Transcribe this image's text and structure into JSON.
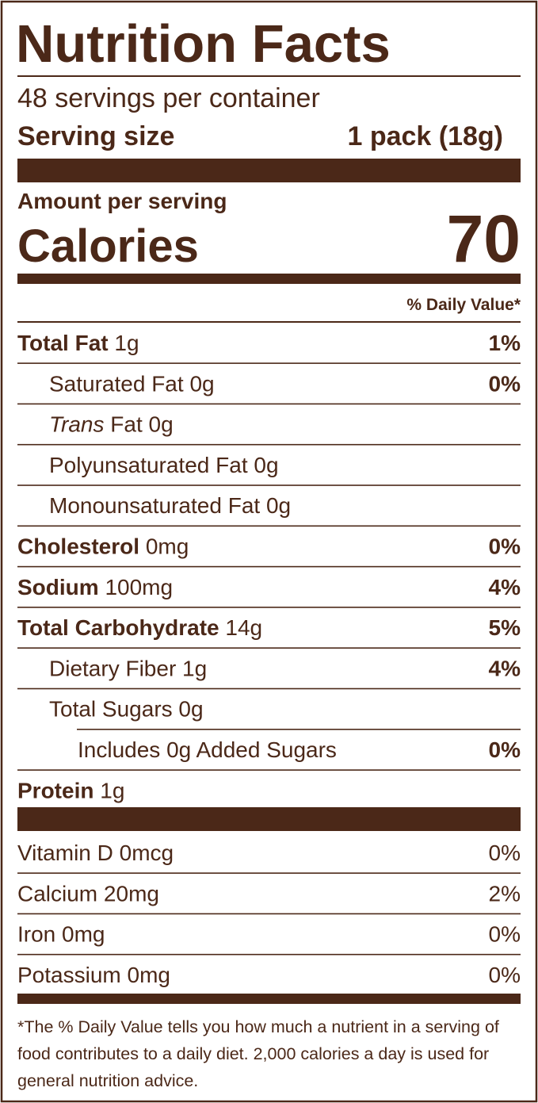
{
  "header": {
    "title": "Nutrition Facts",
    "servings": "48 servings per container",
    "serving_size_label": "Serving size",
    "serving_size_value": "1 pack (18g)"
  },
  "calories": {
    "amount_label": "Amount per serving",
    "label": "Calories",
    "value": "70"
  },
  "dv_header": "% Daily Value*",
  "nutrients": [
    {
      "label": "Total Fat",
      "amount": "1g",
      "dv": "1%"
    },
    {
      "label": "Saturated Fat",
      "amount": "0g",
      "dv": "0%"
    },
    {
      "label": "Trans",
      "amount": "Fat 0g"
    },
    {
      "label": "Polyunsaturated Fat",
      "amount": "0g"
    },
    {
      "label": "Monounsaturated Fat",
      "amount": "0g"
    },
    {
      "label": "Cholesterol",
      "amount": "0mg",
      "dv": "0%"
    },
    {
      "label": "Sodium",
      "amount": "100mg",
      "dv": "4%"
    },
    {
      "label": "Total Carbohydrate",
      "amount": "14g",
      "dv": "5%"
    },
    {
      "label": "Dietary Fiber",
      "amount": "1g",
      "dv": "4%"
    },
    {
      "label": "Total Sugars",
      "amount": "0g"
    },
    {
      "label": "Includes",
      "amount": "0g Added Sugars",
      "dv": "0%"
    },
    {
      "label": "Protein",
      "amount": "1g"
    }
  ],
  "vitamins": [
    {
      "label": "Vitamin D",
      "amount": "0mcg",
      "dv": "0%"
    },
    {
      "label": "Calcium",
      "amount": "20mg",
      "dv": "2%"
    },
    {
      "label": "Iron",
      "amount": "0mg",
      "dv": "0%"
    },
    {
      "label": "Potassium",
      "amount": "0mg",
      "dv": "0%"
    }
  ],
  "footnote": "*The % Daily Value tells you how much a nutrient in a serving of food contributes to a daily diet. 2,000 calories a day is used for general nutrition advice."
}
